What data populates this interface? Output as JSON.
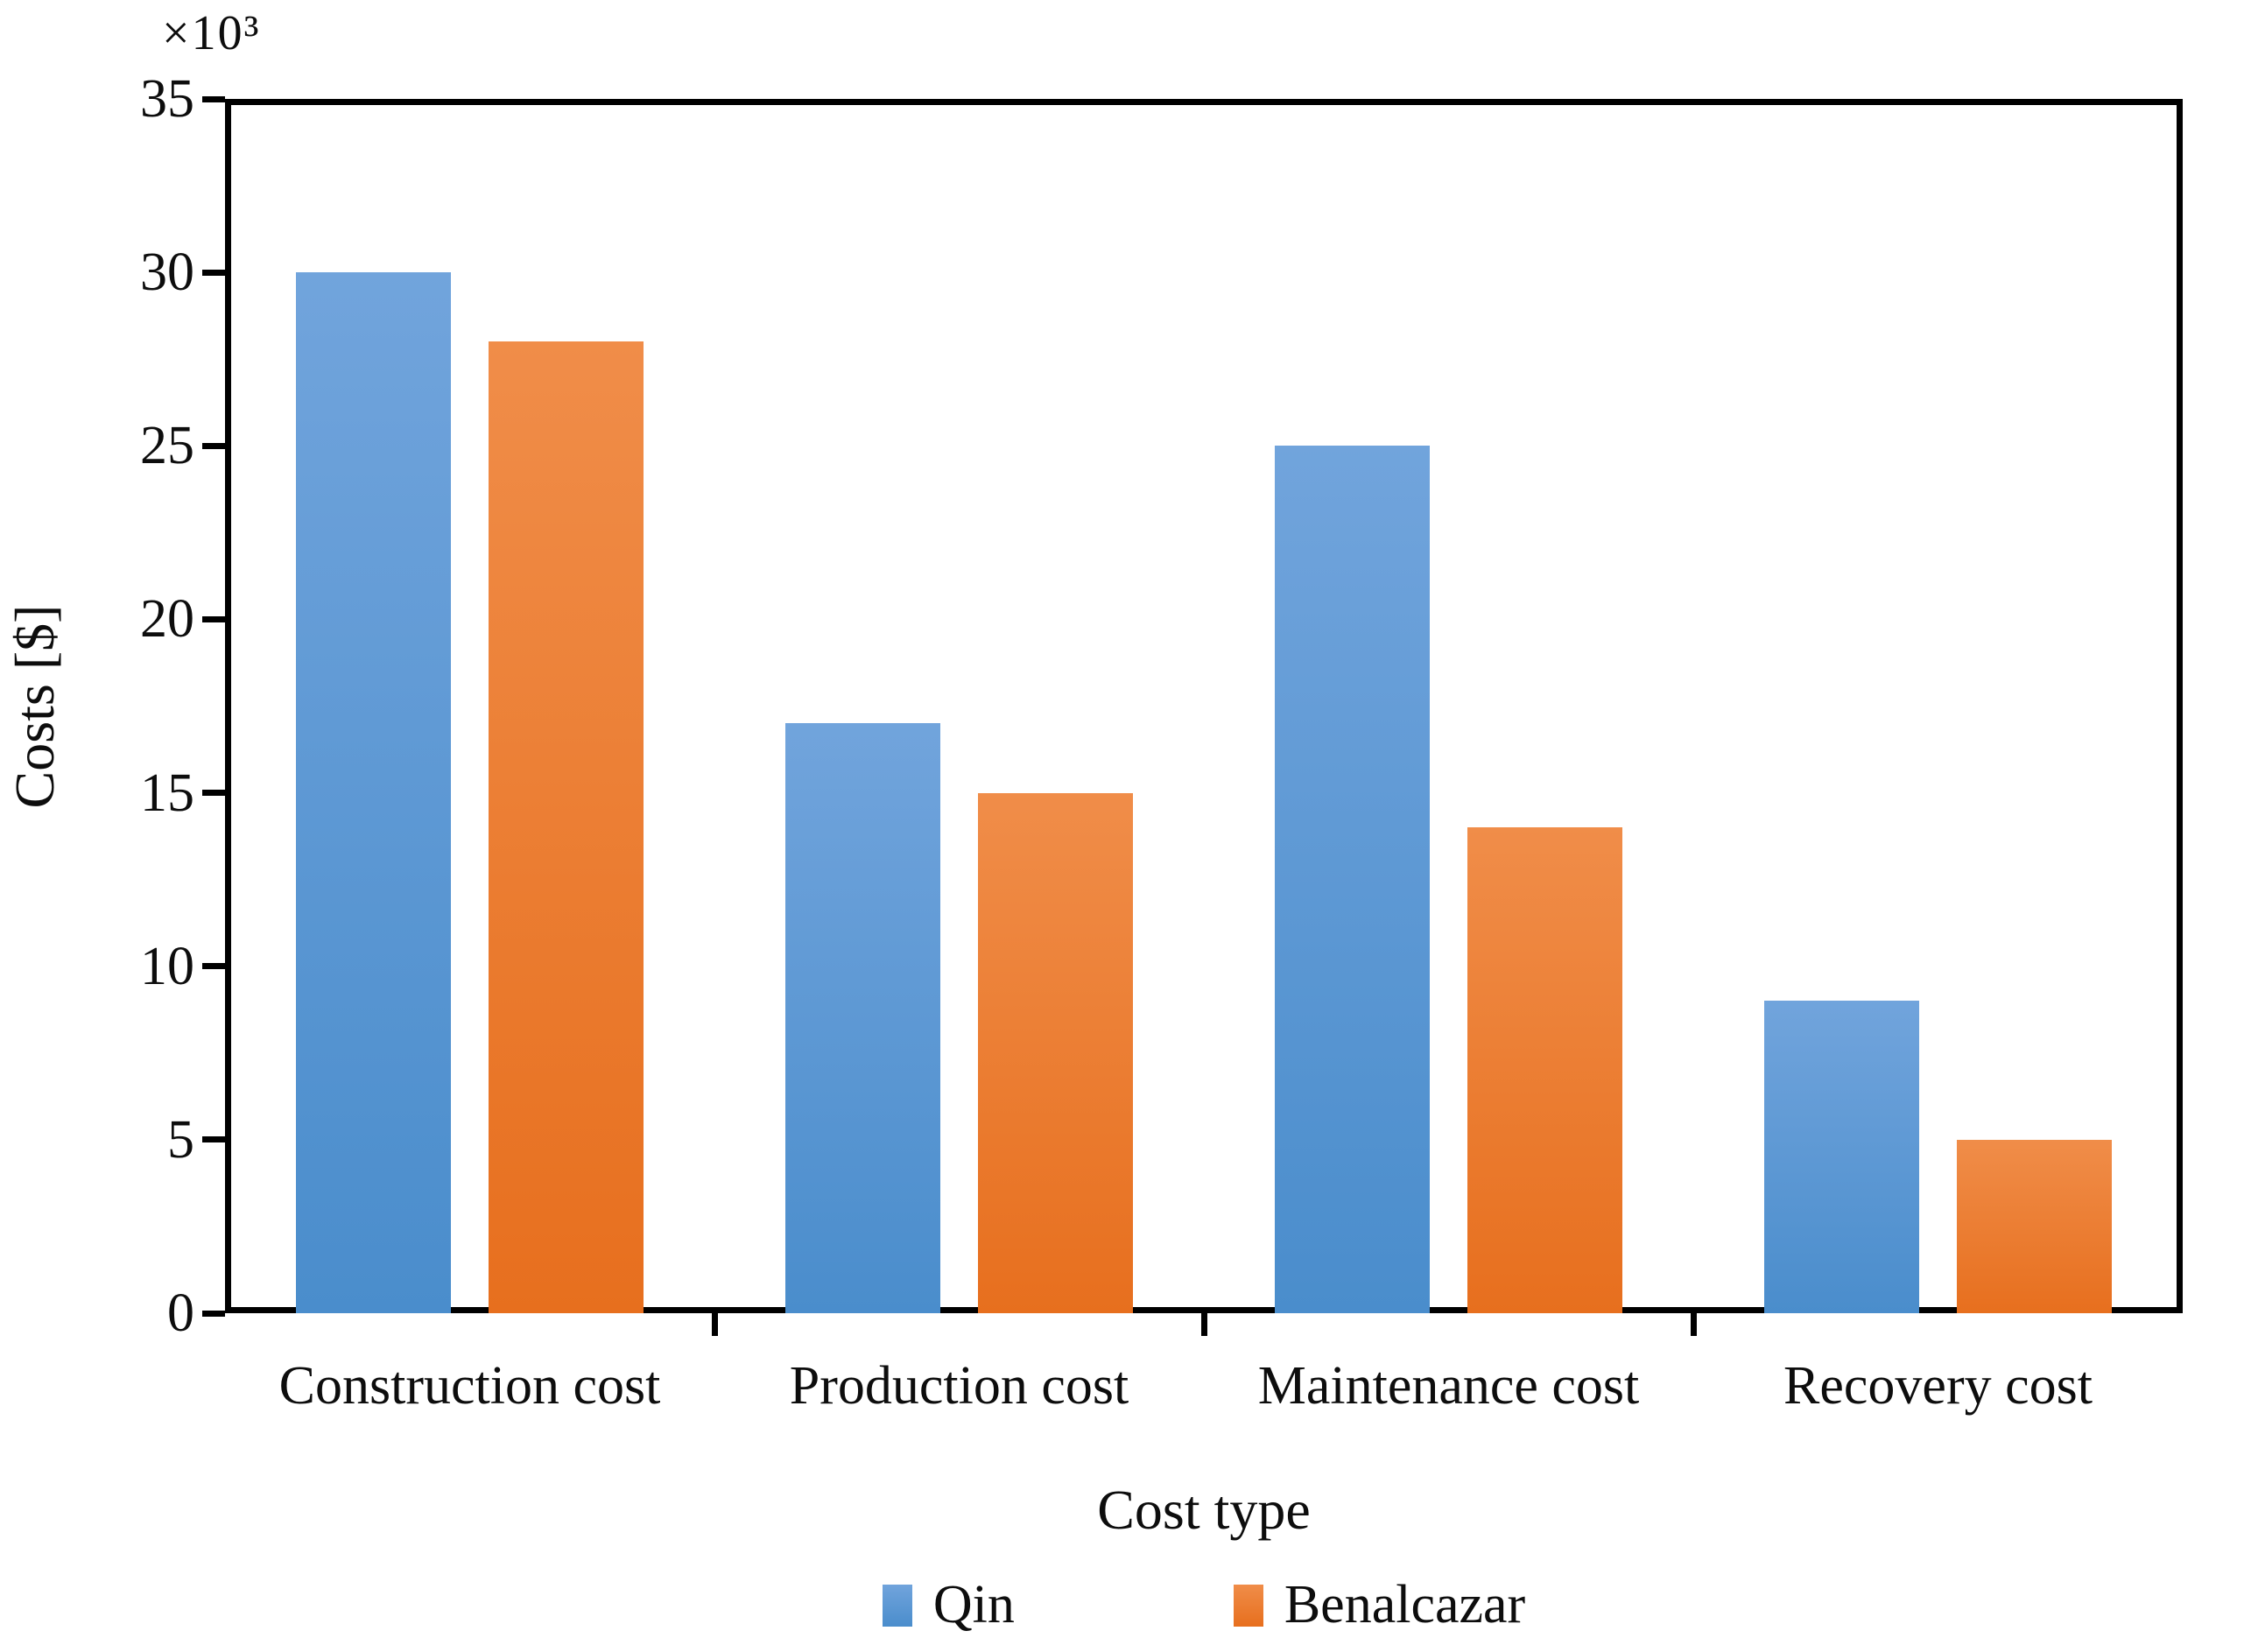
{
  "chart_data": {
    "type": "bar",
    "title": "",
    "categories": [
      "Construction cost",
      "Production cost",
      "Maintenance cost",
      "Recovery cost"
    ],
    "series": [
      {
        "name": "Qin",
        "color": "#5B9BD5",
        "color_top": "#71A4DC",
        "color_bottom": "#4A8DCC",
        "values": [
          30,
          17,
          25,
          9
        ]
      },
      {
        "name": "Benalcazar",
        "color": "#ED7D31",
        "color_top": "#F08D49",
        "color_bottom": "#E76F1E",
        "values": [
          28,
          15,
          14,
          5
        ]
      }
    ],
    "xlabel": "Cost type",
    "ylabel": "Costs [$]",
    "y_multiplier_label": "×10³",
    "ylim": [
      0,
      35
    ],
    "yticks": [
      0,
      5,
      10,
      15,
      20,
      25,
      30,
      35
    ],
    "grid": false,
    "legend_position": "bottom",
    "axis_color": "#000000"
  }
}
